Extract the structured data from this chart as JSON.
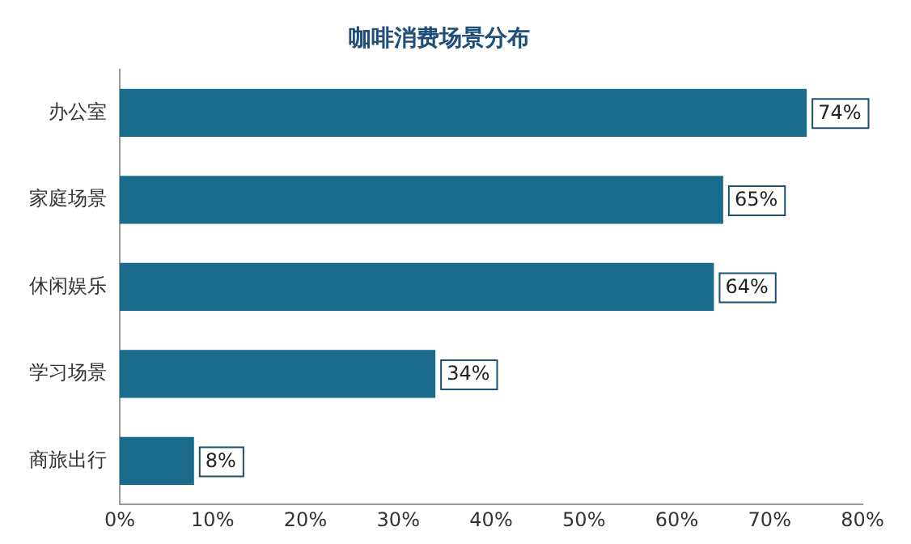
{
  "chart_data": {
    "type": "bar",
    "orientation": "horizontal",
    "title": "咖啡消费场景分布",
    "categories": [
      "办公室",
      "家庭场景",
      "休闲娱乐",
      "学习场景",
      "商旅出行"
    ],
    "values": [
      74,
      65,
      64,
      34,
      8
    ],
    "value_labels": [
      "74%",
      "65%",
      "64%",
      "34%",
      "8%"
    ],
    "color": "#1b6b8c",
    "xlim": [
      0,
      80
    ],
    "xticks": [
      {
        "value": 0,
        "label": "0%"
      },
      {
        "value": 10,
        "label": "10%"
      },
      {
        "value": 20,
        "label": "20%"
      },
      {
        "value": 30,
        "label": "30%"
      },
      {
        "value": 40,
        "label": "40%"
      },
      {
        "value": 50,
        "label": "50%"
      },
      {
        "value": 60,
        "label": "60%"
      },
      {
        "value": 70,
        "label": "70%"
      },
      {
        "value": 80,
        "label": "80%"
      }
    ],
    "grid": false,
    "legend": false
  }
}
